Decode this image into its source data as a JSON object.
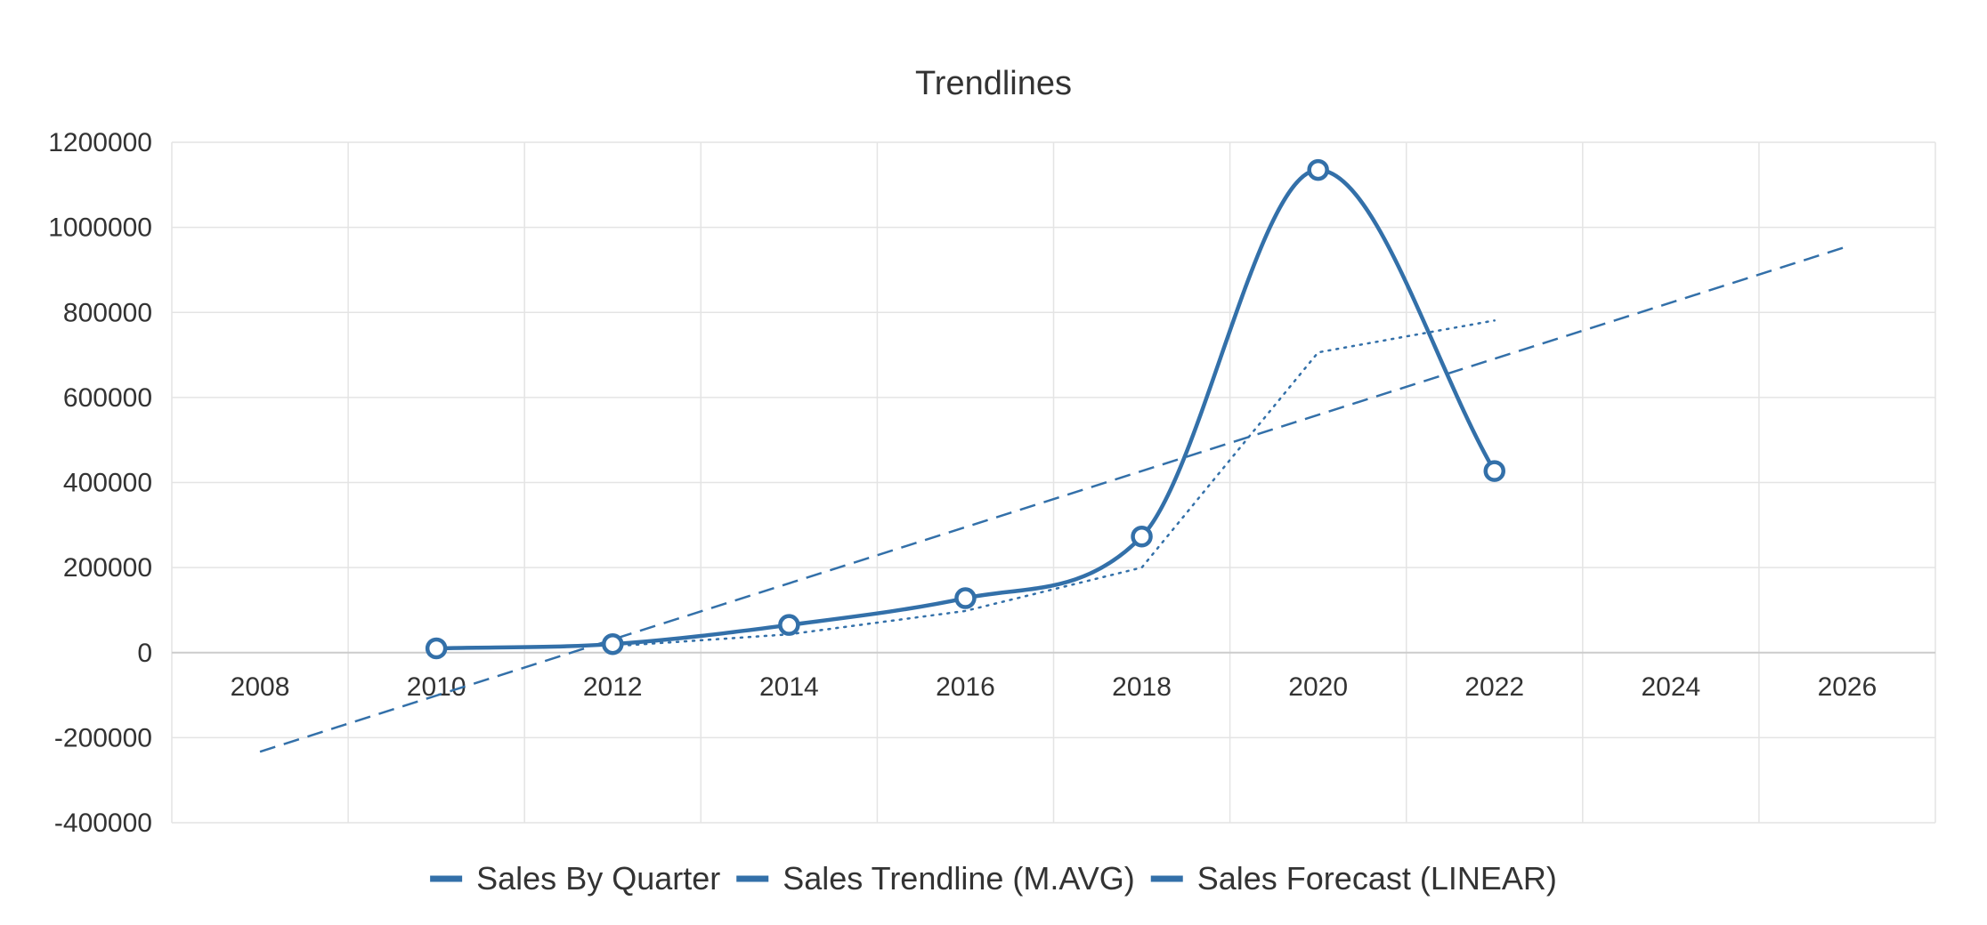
{
  "colors": {
    "series": "#3370a9",
    "grid": "#e4e4e4",
    "axis": "#cccccc",
    "text": "#333333",
    "marker_fill": "#ffffff"
  },
  "chart_data": {
    "type": "line",
    "title": "Trendlines",
    "xlabel": "",
    "ylabel": "",
    "xlim": [
      2007,
      2027
    ],
    "ylim": [
      -400000,
      1200000
    ],
    "x_ticks": [
      2008,
      2010,
      2012,
      2014,
      2016,
      2018,
      2020,
      2022,
      2024,
      2026
    ],
    "y_ticks": [
      -400000,
      -200000,
      0,
      200000,
      400000,
      600000,
      800000,
      1000000,
      1200000
    ],
    "grid": true,
    "legend": "bottom",
    "series": [
      {
        "name": "Sales By Quarter",
        "style": "solid-smooth-markers",
        "x": [
          2010,
          2012,
          2014,
          2016,
          2018,
          2020,
          2022
        ],
        "values": [
          10000,
          20000,
          65000,
          128000,
          273000,
          1135000,
          427000
        ]
      },
      {
        "name": "Sales Trendline (M.AVG)",
        "style": "dotted",
        "x": [
          2012,
          2014,
          2016,
          2018,
          2020,
          2022
        ],
        "values": [
          15000,
          43000,
          98000,
          200000,
          706000,
          781000
        ]
      },
      {
        "name": "Sales Forecast (LINEAR)",
        "style": "dashed",
        "x": [
          2008,
          2026
        ],
        "values": [
          -233000,
          955000
        ]
      }
    ]
  }
}
